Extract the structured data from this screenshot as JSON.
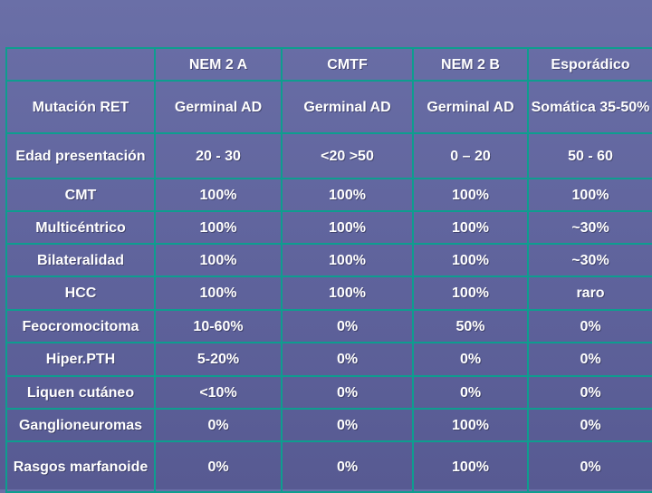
{
  "table": {
    "headers": [
      "",
      "NEM 2 A",
      "CMTF",
      "NEM 2 B",
      "Esporádico"
    ],
    "rows": [
      {
        "label": "Mutación RET",
        "cells": [
          "Germinal AD",
          "Germinal AD",
          "Germinal AD",
          "Somática 35-50%"
        ]
      },
      {
        "label": "Edad presentación",
        "cells": [
          "20 - 30",
          "<20  >50",
          "0 – 20",
          "50 - 60"
        ]
      },
      {
        "label": "CMT",
        "cells": [
          "100%",
          "100%",
          "100%",
          "100%"
        ]
      },
      {
        "label": "Multicéntrico",
        "cells": [
          "100%",
          "100%",
          "100%",
          "~30%"
        ]
      },
      {
        "label": "Bilateralidad",
        "cells": [
          "100%",
          "100%",
          "100%",
          "~30%"
        ]
      },
      {
        "label": "HCC",
        "cells": [
          "100%",
          "100%",
          "100%",
          "raro"
        ]
      },
      {
        "label": "Feocromocitoma",
        "cells": [
          "10-60%",
          "0%",
          "50%",
          "0%"
        ]
      },
      {
        "label": "Hiper.PTH",
        "cells": [
          "5-20%",
          "0%",
          "0%",
          "0%"
        ]
      },
      {
        "label": "Liquen cutáneo",
        "cells": [
          "<10%",
          "0%",
          "0%",
          "0%"
        ]
      },
      {
        "label": "Ganglioneuromas",
        "cells": [
          "0%",
          "0%",
          "100%",
          "0%"
        ]
      },
      {
        "label": "Rasgos marfanoide",
        "cells": [
          "0%",
          "0%",
          "100%",
          "0%"
        ]
      }
    ]
  },
  "colors": {
    "background": "#6a6fa7",
    "border": "#0e9d8f",
    "text": "#ffffff"
  }
}
